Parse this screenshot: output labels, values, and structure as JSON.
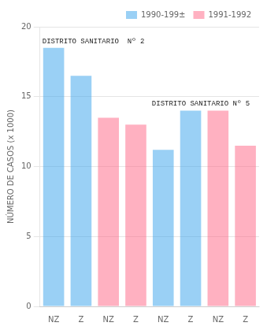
{
  "chart_data": {
    "type": "bar",
    "categories": [
      "NZ",
      "Z",
      "NZ",
      "Z",
      "NZ",
      "Z",
      "NZ",
      "Z"
    ],
    "series": [
      {
        "name": "1990-199±",
        "values": [
          18.5,
          16.5,
          null,
          null,
          11.2,
          14.0,
          null,
          null
        ]
      },
      {
        "name": "1991-1992",
        "values": [
          null,
          null,
          13.5,
          13.0,
          null,
          null,
          14.0,
          11.5
        ]
      }
    ],
    "ylabel": "NÚMERO DE CASOS (x 1000)",
    "annotations": [
      "DISTRITO SANITARIO  Nº 2",
      "DISTRITO SANITARIO Nº 5"
    ],
    "ylim": [
      0,
      20
    ],
    "yticks": [
      0,
      5,
      10,
      15,
      20
    ],
    "grid": true,
    "legend": "upper right"
  }
}
